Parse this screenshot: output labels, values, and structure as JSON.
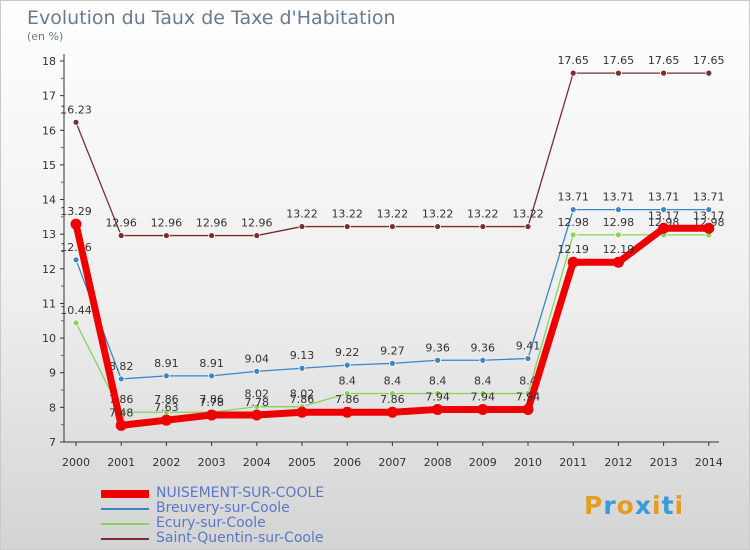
{
  "title": "Evolution du Taux de Taxe d'Habitation",
  "subtitle": "(en %)",
  "logo": {
    "text": "Proxiti",
    "letters": [
      "P",
      "r",
      "o",
      "x",
      "i",
      "t",
      "i"
    ],
    "colors": [
      "#e89c1f",
      "#3a9bd9",
      "#e89c1f",
      "#3a9bd9",
      "#e89c1f",
      "#3a9bd9",
      "#e89c1f"
    ]
  },
  "chart_data": {
    "type": "line",
    "title": "Evolution du Taux de Taxe d'Habitation",
    "ylabel": "(en %)",
    "x": [
      "2000",
      "2001",
      "2002",
      "2003",
      "2004",
      "2005",
      "2006",
      "2007",
      "2008",
      "2009",
      "2010",
      "2011",
      "2012",
      "2013",
      "2014"
    ],
    "ylim": [
      7,
      18
    ],
    "yticks": [
      "7",
      "8",
      "9",
      "10",
      "11",
      "12",
      "13",
      "14",
      "15",
      "16",
      "17",
      "18"
    ],
    "grid": false,
    "legend_position": "bottom-left",
    "series": [
      {
        "name": "Saint-Quentin-sur-Coole",
        "color": "#7b2c2c",
        "values": [
          16.23,
          12.96,
          12.96,
          12.96,
          12.96,
          13.22,
          13.22,
          13.22,
          13.22,
          13.22,
          13.22,
          17.65,
          17.65,
          17.65,
          17.65
        ],
        "labels": [
          "16.23",
          "12.96",
          "12.96",
          "12.96",
          "12.96",
          "13.22",
          "13.22",
          "13.22",
          "13.22",
          "13.22",
          "13.22",
          "17.65",
          "17.65",
          "17.65",
          "17.65"
        ]
      },
      {
        "name": "Breuvery-sur-Coole",
        "color": "#3a86c8",
        "values": [
          12.26,
          8.82,
          8.91,
          8.91,
          9.04,
          9.13,
          9.22,
          9.27,
          9.36,
          9.36,
          9.41,
          13.71,
          13.71,
          13.71,
          13.71
        ],
        "labels": [
          "12.26",
          "8.82",
          "8.91",
          "8.91",
          "9.04",
          "9.13",
          "9.22",
          "9.27",
          "9.36",
          "9.36",
          "9.41",
          "13.71",
          "13.71",
          "13.71",
          "13.71"
        ]
      },
      {
        "name": "Ecury-sur-Coole",
        "color": "#88d25a",
        "values": [
          10.44,
          7.86,
          7.86,
          7.86,
          8.02,
          8.02,
          8.4,
          8.4,
          8.4,
          8.4,
          8.4,
          12.98,
          12.98,
          12.98,
          12.98
        ],
        "labels": [
          "10.44",
          "7.86",
          "7.86",
          "7.86",
          "8.02",
          "8.02",
          "8.4",
          "8.4",
          "8.4",
          "8.4",
          "8.4",
          "12.98",
          "12.98",
          "12.98",
          "12.98"
        ]
      },
      {
        "name": "NUISEMENT-SUR-COOLE",
        "color": "#ee0000",
        "values": [
          13.29,
          7.48,
          7.63,
          7.78,
          7.78,
          7.86,
          7.86,
          7.86,
          7.94,
          7.94,
          7.94,
          12.19,
          12.19,
          13.17,
          13.17
        ],
        "labels": [
          "13.29",
          "7.48",
          "7.63",
          "7.78",
          "7.78",
          "7.86",
          "7.86",
          "7.86",
          "7.94",
          "7.94",
          "7.94",
          "12.19",
          "12.19",
          "13.17",
          "13.17"
        ]
      }
    ]
  }
}
